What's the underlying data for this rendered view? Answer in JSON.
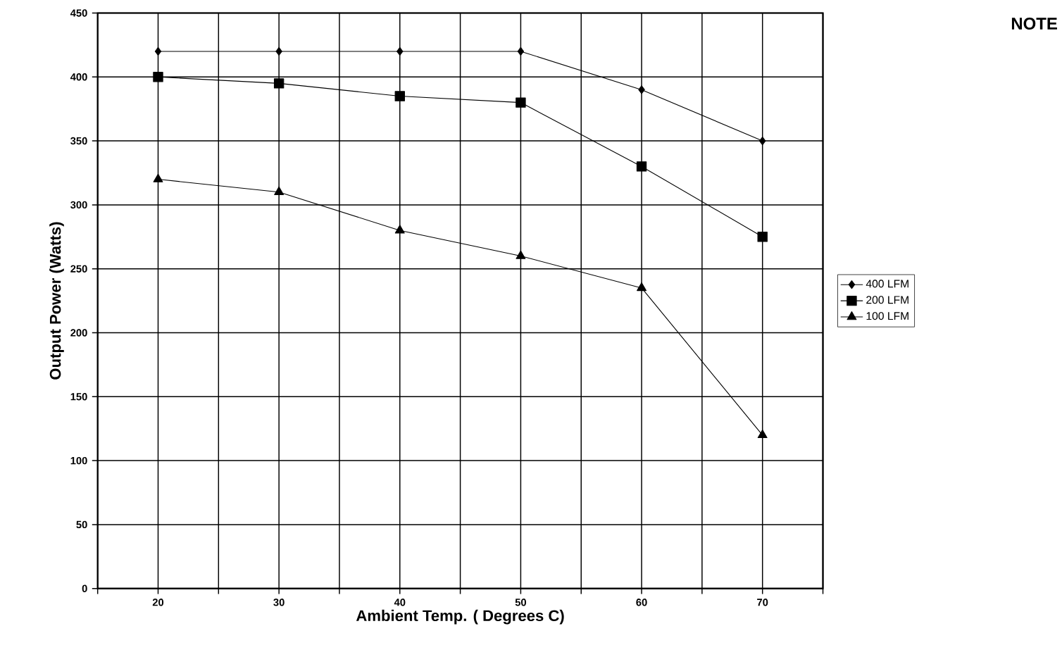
{
  "chart_data": {
    "type": "line",
    "xlabel": "Ambient Temp.  ( Degrees C)",
    "ylabel": "Output Power (Watts)",
    "x": [
      20,
      30,
      40,
      50,
      60,
      70
    ],
    "series": [
      {
        "name": "400 LFM",
        "color": "#000000",
        "marker": "diamond",
        "values": [
          420,
          420,
          420,
          420,
          390,
          350
        ]
      },
      {
        "name": "200 LFM",
        "color": "#000000",
        "marker": "square",
        "values": [
          400,
          395,
          385,
          380,
          330,
          275
        ]
      },
      {
        "name": "100 LFM",
        "color": "#000000",
        "marker": "triangle",
        "values": [
          320,
          310,
          280,
          260,
          235,
          120
        ]
      }
    ],
    "xlim": [
      15,
      75
    ],
    "xticks": [
      {
        "value": 15,
        "label": null
      },
      20,
      {
        "value": 25,
        "label": null
      },
      30,
      {
        "value": 35,
        "label": null
      },
      40,
      {
        "value": 45,
        "label": null
      },
      50,
      {
        "value": 55,
        "label": null
      },
      60,
      {
        "value": 65,
        "label": null
      },
      70,
      {
        "value": 75,
        "label": null
      }
    ],
    "ylim": [
      0,
      450
    ],
    "yticks": [
      0,
      50,
      100,
      150,
      200,
      250,
      300,
      350,
      400,
      450
    ],
    "grid": true,
    "legend": "right",
    "line_style": "solid",
    "annotations": [
      "NOTE"
    ]
  }
}
